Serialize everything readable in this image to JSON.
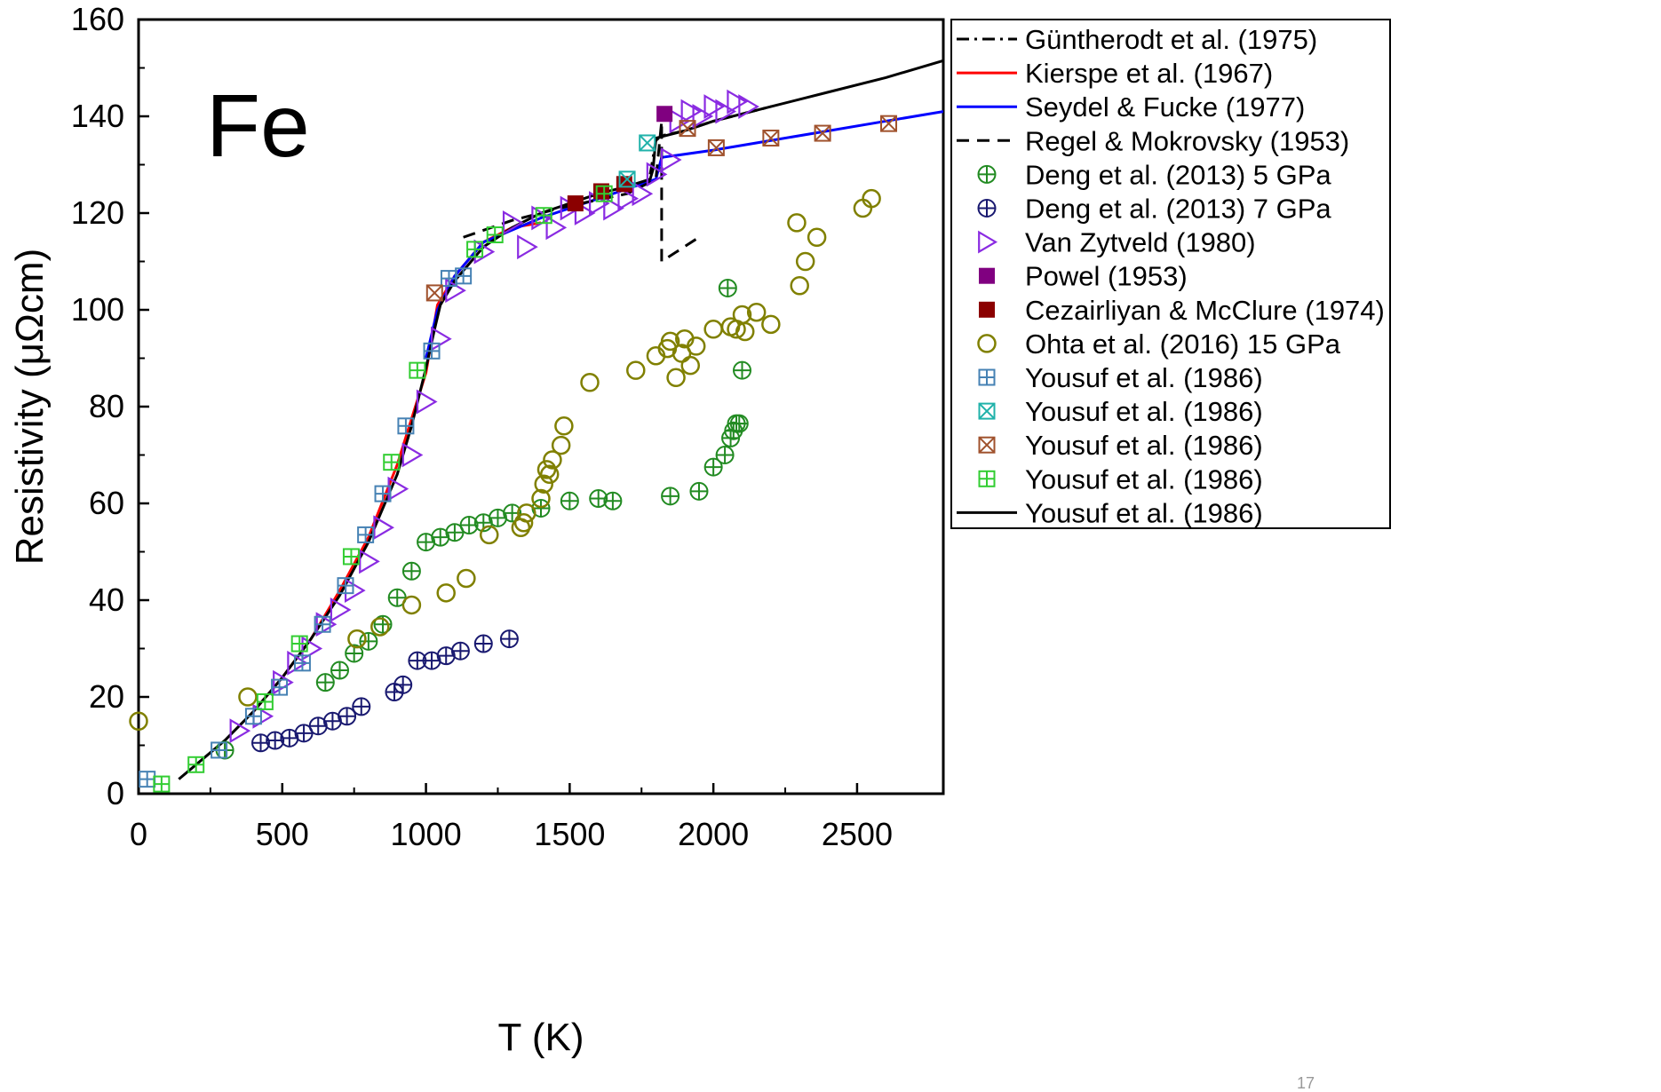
{
  "chart_data": {
    "type": "scatter",
    "annotation": "Fe",
    "xlabel": "T (K)",
    "ylabel": "Resistivity (μΩcm)",
    "xlim": [
      0,
      2800
    ],
    "ylim": [
      0,
      160
    ],
    "xticks": [
      0,
      500,
      1000,
      1500,
      2000,
      2500
    ],
    "yticks": [
      0,
      20,
      40,
      60,
      80,
      100,
      120,
      140,
      160
    ],
    "grid": false,
    "legend_position": "right-outside",
    "series": [
      {
        "name": "Güntherodt et al. (1975)",
        "kind": "line",
        "dash": "dashdot",
        "color": "#000000",
        "x": [
          1780,
          1800,
          1820,
          1900,
          2000,
          2200
        ],
        "y": [
          128,
          135,
          136,
          137,
          139,
          142
        ]
      },
      {
        "name": "Kierspe et al. (1967)",
        "kind": "line",
        "dash": "solid",
        "color": "#ff0000",
        "x": [
          400,
          500,
          600,
          700,
          800,
          900,
          1000,
          1040,
          1100,
          1200,
          1300,
          1400
        ],
        "y": [
          17,
          24,
          32,
          42,
          53,
          68,
          87,
          101,
          107,
          114,
          117,
          118
        ]
      },
      {
        "name": "Seydel & Fucke (1977)",
        "kind": "line",
        "dash": "solid",
        "color": "#0000ff",
        "x": [
          1000,
          1040,
          1100,
          1200,
          1400,
          1600,
          1800,
          1820,
          2000,
          2200,
          2400,
          2600,
          2800
        ],
        "y": [
          90,
          100,
          107,
          114,
          119,
          123,
          127,
          131.5,
          133,
          135,
          137,
          139,
          141
        ]
      },
      {
        "name": "Regel & Mokrovsky (1953)",
        "kind": "line",
        "dash": "dashed",
        "color": "#000000",
        "x": [
          1130,
          1300,
          1500,
          1700,
          1800,
          1820,
          1820,
          1820,
          1950
        ],
        "y": [
          115,
          118.5,
          121.5,
          124,
          127,
          139,
          121,
          110,
          115
        ]
      },
      {
        "name": "Deng et al. (2013) 5 GPa",
        "kind": "marker",
        "marker": "circle-plus",
        "color": "#228b22",
        "x": [
          300,
          650,
          700,
          750,
          800,
          850,
          900,
          950,
          1000,
          1050,
          1100,
          1150,
          1200,
          1250,
          1300,
          1400,
          1500,
          1600,
          1650,
          1850,
          1950,
          2000,
          2040,
          2060,
          2070,
          2080,
          2090,
          2100,
          2050
        ],
        "y": [
          9,
          23,
          25.5,
          29,
          31.5,
          35,
          40.5,
          46,
          52,
          53,
          54,
          55.5,
          56,
          57,
          58,
          59,
          60.5,
          61,
          60.5,
          61.5,
          62.5,
          67.5,
          70,
          73.5,
          75,
          76.5,
          76.5,
          87.5,
          104.5
        ]
      },
      {
        "name": "Deng et al. (2013) 7 GPa",
        "kind": "marker",
        "marker": "circle-plus",
        "color": "#191970",
        "x": [
          425,
          475,
          525,
          575,
          625,
          675,
          725,
          775,
          890,
          920,
          970,
          1020,
          1070,
          1120,
          1200,
          1290
        ],
        "y": [
          10.5,
          11,
          11.5,
          12.5,
          14,
          15,
          16,
          18,
          21,
          22.5,
          27.5,
          27.5,
          28.5,
          29.5,
          31,
          32
        ]
      },
      {
        "name": "Van Zytveld (1980)",
        "kind": "marker",
        "marker": "triangle-right",
        "color": "#8a2be2",
        "x": [
          350,
          430,
          500,
          550,
          600,
          650,
          700,
          750,
          800,
          850,
          900,
          950,
          1000,
          1050,
          1100,
          1200,
          1300,
          1350,
          1400,
          1450,
          1500,
          1550,
          1600,
          1650,
          1700,
          1750,
          1800,
          1850,
          1880,
          1920,
          1960,
          2000,
          2040,
          2080,
          2120
        ],
        "y": [
          13,
          16,
          23,
          27,
          30,
          35,
          38,
          42,
          48,
          55,
          63,
          70,
          81,
          94,
          104,
          112,
          118,
          113,
          119,
          117,
          121,
          120,
          122,
          121,
          123,
          124,
          128,
          131,
          139,
          141,
          140,
          142,
          141,
          143,
          142
        ]
      },
      {
        "name": "Powel (1953)",
        "kind": "marker",
        "marker": "square-filled",
        "color": "#800080",
        "x": [
          1830
        ],
        "y": [
          140.5
        ]
      },
      {
        "name": "Cezairliyan & McClure (1974)",
        "kind": "marker",
        "marker": "square-filled",
        "color": "#8b0000",
        "x": [
          1520,
          1610,
          1690
        ],
        "y": [
          122,
          124.5,
          126
        ]
      },
      {
        "name": "Ohta et al. (2016) 15 GPa",
        "kind": "marker",
        "marker": "circle-open",
        "color": "#808000",
        "x": [
          0,
          380,
          760,
          840,
          950,
          1070,
          1140,
          1220,
          1330,
          1340,
          1350,
          1400,
          1410,
          1420,
          1430,
          1440,
          1470,
          1480,
          1570,
          1730,
          1800,
          1840,
          1850,
          1870,
          1890,
          1900,
          1920,
          1940,
          2000,
          2060,
          2080,
          2100,
          2110,
          2150,
          2200,
          2290,
          2300,
          2320,
          2360,
          2520,
          2550
        ],
        "y": [
          15,
          20,
          32,
          34.5,
          39,
          41.5,
          44.5,
          53.5,
          55,
          56,
          58,
          61,
          64,
          67,
          66,
          69,
          72,
          76,
          85,
          87.5,
          90.5,
          92,
          93.5,
          86,
          91,
          94,
          88.5,
          92.5,
          96,
          96.5,
          96,
          99,
          95.5,
          99.5,
          97,
          118,
          105,
          110,
          115,
          121,
          123
        ]
      },
      {
        "name": "Yousuf et al. (1986)",
        "kind": "marker",
        "marker": "square-plus",
        "color": "#4682b4",
        "x": [
          30,
          280,
          400,
          490,
          570,
          640,
          720,
          790,
          850,
          930,
          1020,
          1080,
          1130
        ],
        "y": [
          3,
          9,
          16,
          22,
          27,
          35,
          43,
          53.5,
          62,
          76,
          91.5,
          106.5,
          107
        ]
      },
      {
        "name": "Yousuf et al. (1986)",
        "kind": "marker",
        "marker": "square-x",
        "color": "#20b2aa",
        "x": [
          1770,
          1700
        ],
        "y": [
          134.5,
          127
        ]
      },
      {
        "name": "Yousuf et al. (1986)",
        "kind": "marker",
        "marker": "square-x",
        "color": "#a0522d",
        "x": [
          1030,
          1910,
          2010,
          2200,
          2380,
          2610
        ],
        "y": [
          103.5,
          137.5,
          133.5,
          135.5,
          136.5,
          138.5
        ]
      },
      {
        "name": "Yousuf et al. (1986)",
        "kind": "marker",
        "marker": "square-plus",
        "color": "#32cd32",
        "x": [
          80,
          200,
          440,
          560,
          740,
          880,
          970,
          1170,
          1240,
          1410,
          1620
        ],
        "y": [
          2,
          6,
          19,
          31,
          49,
          68.5,
          87.5,
          112.5,
          115.5,
          119.5,
          124
        ]
      },
      {
        "name": "Yousuf et al. (1986)",
        "kind": "line",
        "dash": "solid",
        "color": "#000000",
        "x": [
          140,
          200,
          300,
          400,
          500,
          600,
          700,
          800,
          900,
          950,
          1000,
          1030,
          1050,
          1100,
          1200,
          1300,
          1400,
          1500,
          1600,
          1700,
          1780,
          1790,
          1800,
          1900,
          2000,
          2200,
          2400,
          2600,
          2800
        ],
        "y": [
          3,
          6,
          11,
          17,
          24,
          32,
          41,
          52,
          66,
          76,
          88,
          96,
          101,
          106,
          113,
          117,
          120,
          122,
          124,
          125.5,
          127,
          129,
          135.5,
          137,
          139,
          142,
          145,
          148,
          151.5
        ]
      }
    ]
  },
  "page_footer": {
    "page_number": "17"
  }
}
